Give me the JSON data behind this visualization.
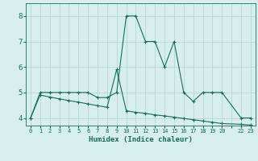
{
  "curve1_x": [
    0,
    1,
    2,
    3,
    4,
    5,
    6,
    7,
    8,
    9,
    10,
    11,
    12,
    13,
    14,
    15,
    16,
    17,
    18,
    19,
    20,
    22,
    23
  ],
  "curve1_y": [
    4,
    5,
    5,
    5,
    5,
    5,
    5,
    4.8,
    4.8,
    5,
    8,
    8,
    7,
    7,
    6,
    7,
    5,
    4.65,
    5,
    5,
    5,
    4,
    4
  ],
  "curve2_x": [
    0,
    1,
    2,
    3,
    4,
    5,
    6,
    7,
    8,
    9,
    10,
    11,
    12,
    13,
    14,
    15,
    16,
    17,
    18,
    19,
    20,
    22,
    23
  ],
  "curve2_y": [
    4,
    4.9,
    4.82,
    4.75,
    4.68,
    4.62,
    4.55,
    4.48,
    4.42,
    5.9,
    4.28,
    4.22,
    4.18,
    4.12,
    4.08,
    4.03,
    3.98,
    3.93,
    3.88,
    3.83,
    3.78,
    3.75,
    3.72
  ],
  "color": "#1a6b5a",
  "bg_color": "#d6efed",
  "grid_color": "#b8d8d4",
  "xlabel": "Humidex (Indice chaleur)",
  "ylim": [
    3.7,
    8.5
  ],
  "xlim": [
    -0.5,
    23.5
  ],
  "yticks": [
    4,
    5,
    6,
    7,
    8
  ],
  "xtick_labels": [
    "0",
    "1",
    "2",
    "3",
    "4",
    "5",
    "6",
    "7",
    "8",
    "9",
    "10",
    "11",
    "12",
    "13",
    "14",
    "15",
    "16",
    "17",
    "18",
    "19",
    "20",
    "",
    "22",
    "23"
  ]
}
